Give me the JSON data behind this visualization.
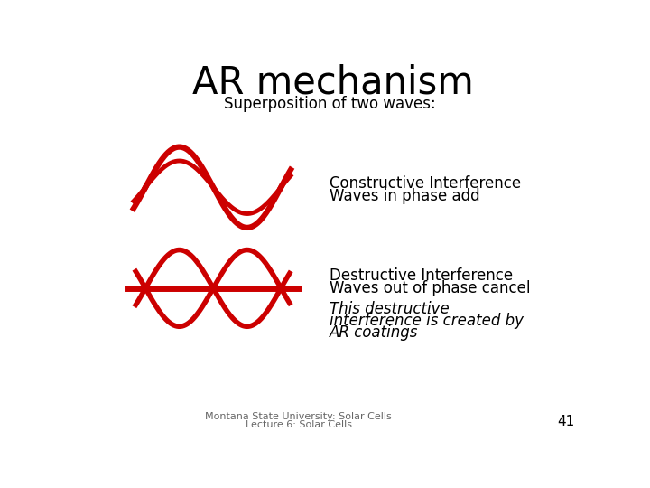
{
  "title": "AR mechanism",
  "subtitle": "Superposition of two waves:",
  "constructive_label1": "Constructive Interference",
  "constructive_label2": "Waves in phase add",
  "destructive_label1": "Destructive Interference",
  "destructive_label2": "Waves out of phase cancel",
  "extra_label1": "This destructive",
  "extra_label2": "interference is created by",
  "extra_label3": "AR coatings",
  "footer1": "Montana State University: Solar Cells",
  "footer2": "Lecture 6: Solar Cells",
  "page_num": "41",
  "wave_color": "#cc0000",
  "bg_color": "#ffffff",
  "text_color": "#000000"
}
